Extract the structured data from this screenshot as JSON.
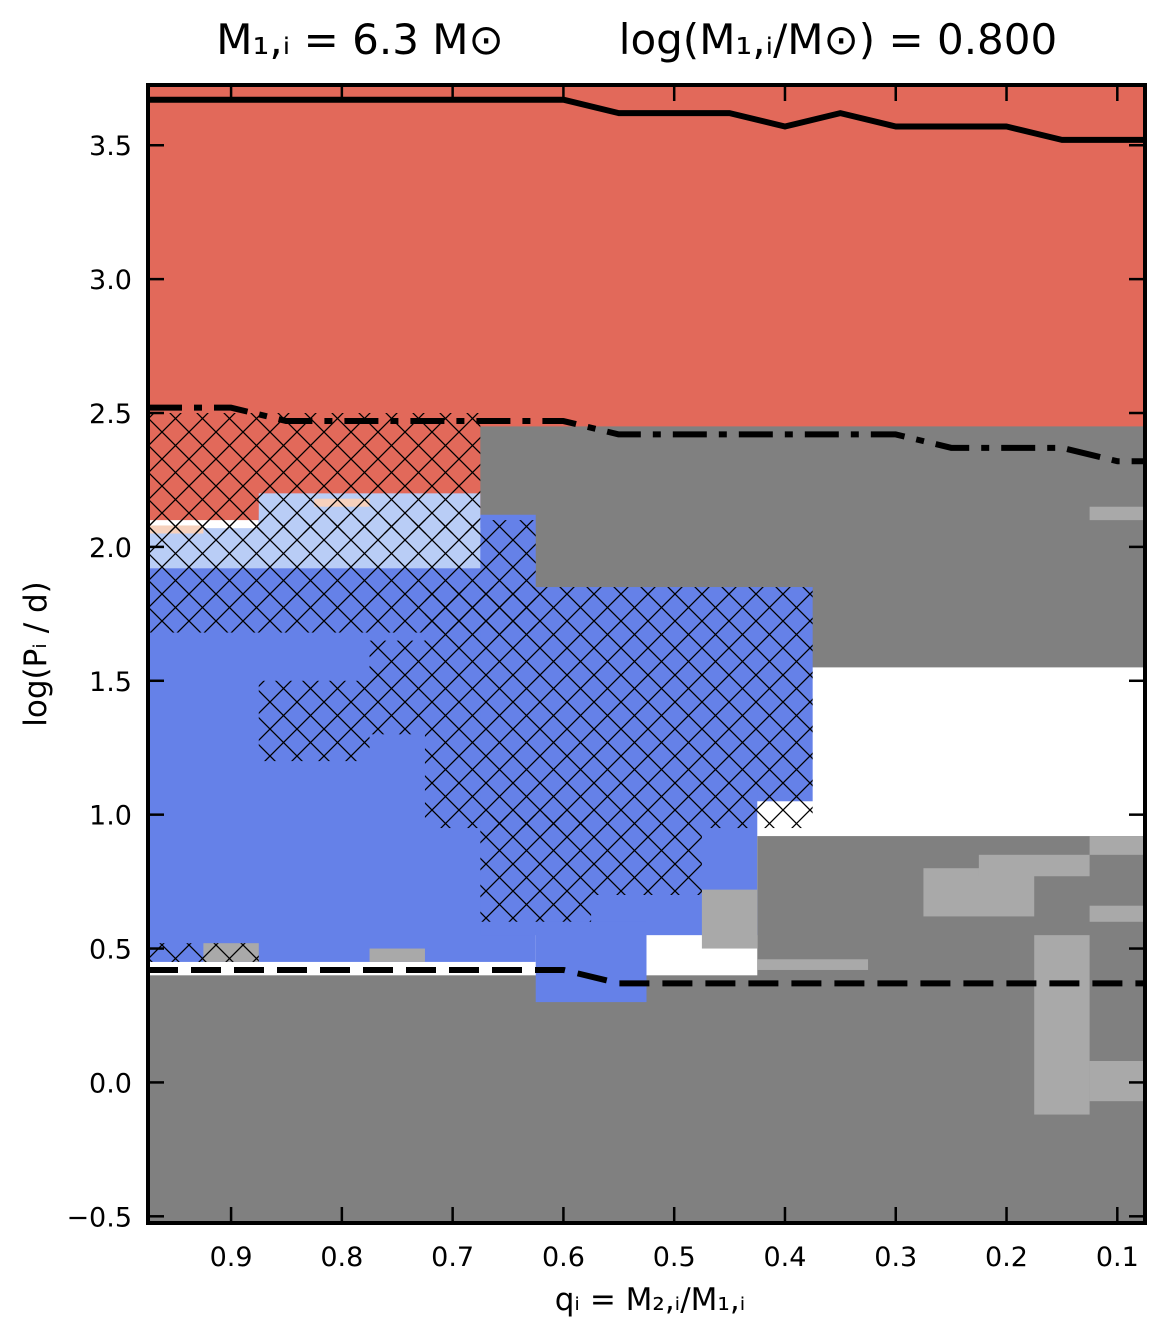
{
  "chart_data": {
    "type": "heatmap",
    "title_left": "M₁,ᵢ = 6.3 M⊙",
    "title_right": "log(M₁,ᵢ/M⊙) = 0.800",
    "xlabel": "qᵢ = M₂,ᵢ/M₁,ᵢ",
    "ylabel": "log(Pᵢ / d)",
    "xlim": [
      0.975,
      0.075
    ],
    "ylim": [
      -0.525,
      3.725
    ],
    "x_ticks": [
      0.9,
      0.8,
      0.7,
      0.6,
      0.5,
      0.4,
      0.3,
      0.2,
      0.1
    ],
    "x_tick_labels": [
      "0.9",
      "0.8",
      "0.7",
      "0.6",
      "0.5",
      "0.4",
      "0.3",
      "0.2",
      "0.1"
    ],
    "y_ticks": [
      3.5,
      3.0,
      2.5,
      2.0,
      1.5,
      1.0,
      0.5,
      0.0,
      -0.5
    ],
    "y_tick_labels": [
      "3.5",
      "3.0",
      "2.5",
      "2.0",
      "1.5",
      "1.0",
      "0.5",
      "0.0",
      "−0.5"
    ],
    "colors": {
      "red": "#e2695a",
      "blue": "#6581e8",
      "lightblue": "#b9cdf6",
      "peach": "#f6d1bd",
      "darkgray": "#808080",
      "lightgray": "#a9a9a9"
    },
    "regions": [
      {
        "color": "darkgray",
        "x": [
          0.975,
          0.075
        ],
        "y": [
          -0.525,
          0.4
        ]
      },
      {
        "color": "red",
        "x": [
          0.975,
          0.075
        ],
        "y": [
          2.1,
          3.725
        ]
      },
      {
        "color": "darkgray",
        "x": [
          0.675,
          0.075
        ],
        "y": [
          1.55,
          2.45
        ]
      },
      {
        "color": "blue",
        "x": [
          0.975,
          0.625
        ],
        "y": [
          0.45,
          1.95
        ]
      },
      {
        "color": "blue",
        "x": [
          0.675,
          0.375
        ],
        "y": [
          1.05,
          1.85
        ]
      },
      {
        "color": "blue",
        "x": [
          0.675,
          0.425
        ],
        "y": [
          0.55,
          1.15
        ]
      },
      {
        "color": "blue",
        "x": [
          0.625,
          0.525
        ],
        "y": [
          0.3,
          0.6
        ]
      },
      {
        "color": "blue",
        "x": [
          0.875,
          0.625
        ],
        "y": [
          1.9,
          2.12
        ]
      },
      {
        "color": "lightblue",
        "x": [
          0.975,
          0.675
        ],
        "y": [
          1.92,
          2.07
        ]
      },
      {
        "color": "lightblue",
        "x": [
          0.875,
          0.675
        ],
        "y": [
          2.02,
          2.2
        ]
      },
      {
        "color": "peach",
        "x": [
          0.975,
          0.925
        ],
        "y": [
          2.05,
          2.08
        ]
      },
      {
        "color": "peach",
        "x": [
          0.825,
          0.775
        ],
        "y": [
          2.15,
          2.18
        ]
      },
      {
        "color": "darkgray",
        "x": [
          0.425,
          0.075
        ],
        "y": [
          0.35,
          0.92
        ]
      },
      {
        "color": "lightgray",
        "x": [
          0.475,
          0.425
        ],
        "y": [
          0.5,
          0.72
        ]
      },
      {
        "color": "lightgray",
        "x": [
          0.425,
          0.325
        ],
        "y": [
          0.42,
          0.46
        ]
      },
      {
        "color": "lightgray",
        "x": [
          0.275,
          0.175
        ],
        "y": [
          0.62,
          0.8
        ]
      },
      {
        "color": "lightgray",
        "x": [
          0.225,
          0.125
        ],
        "y": [
          0.77,
          0.85
        ]
      },
      {
        "color": "lightgray",
        "x": [
          0.175,
          0.125
        ],
        "y": [
          -0.12,
          0.55
        ]
      },
      {
        "color": "lightgray",
        "x": [
          0.125,
          0.075
        ],
        "y": [
          0.6,
          0.66
        ]
      },
      {
        "color": "lightgray",
        "x": [
          0.125,
          0.075
        ],
        "y": [
          -0.07,
          0.08
        ]
      },
      {
        "color": "lightgray",
        "x": [
          0.125,
          0.075
        ],
        "y": [
          0.85,
          0.92
        ]
      },
      {
        "color": "lightgray",
        "x": [
          0.125,
          0.075
        ],
        "y": [
          2.1,
          2.15
        ]
      },
      {
        "color": "lightgray",
        "x": [
          0.925,
          0.875
        ],
        "y": [
          0.45,
          0.52
        ]
      },
      {
        "color": "lightgray",
        "x": [
          0.775,
          0.725
        ],
        "y": [
          0.45,
          0.5
        ]
      }
    ],
    "hatched_regions": [
      {
        "x": [
          0.975,
          0.675
        ],
        "y": [
          2.05,
          2.5
        ]
      },
      {
        "x": [
          0.975,
          0.625
        ],
        "y": [
          1.68,
          2.1
        ]
      },
      {
        "x": [
          0.875,
          0.775
        ],
        "y": [
          1.2,
          1.5
        ]
      },
      {
        "x": [
          0.775,
          0.725
        ],
        "y": [
          1.3,
          1.65
        ]
      },
      {
        "x": [
          0.725,
          0.375
        ],
        "y": [
          0.95,
          1.85
        ]
      },
      {
        "x": [
          0.675,
          0.575
        ],
        "y": [
          0.6,
          1.0
        ]
      },
      {
        "x": [
          0.575,
          0.475
        ],
        "y": [
          0.7,
          0.95
        ]
      },
      {
        "x": [
          0.975,
          0.875
        ],
        "y": [
          0.45,
          0.52
        ]
      }
    ],
    "lines": [
      {
        "style": "solid",
        "x": [
          0.975,
          0.6,
          0.55,
          0.45,
          0.4,
          0.35,
          0.3,
          0.2,
          0.15,
          0.075
        ],
        "y": [
          3.67,
          3.67,
          3.62,
          3.62,
          3.57,
          3.62,
          3.57,
          3.57,
          3.52,
          3.52
        ]
      },
      {
        "style": "dashdot",
        "x": [
          0.975,
          0.9,
          0.85,
          0.6,
          0.55,
          0.3,
          0.25,
          0.15,
          0.1,
          0.075
        ],
        "y": [
          2.52,
          2.52,
          2.47,
          2.47,
          2.42,
          2.42,
          2.37,
          2.37,
          2.32,
          2.32
        ]
      },
      {
        "style": "dashed",
        "x": [
          0.975,
          0.6,
          0.55,
          0.075
        ],
        "y": [
          0.42,
          0.42,
          0.37,
          0.37
        ]
      }
    ]
  }
}
